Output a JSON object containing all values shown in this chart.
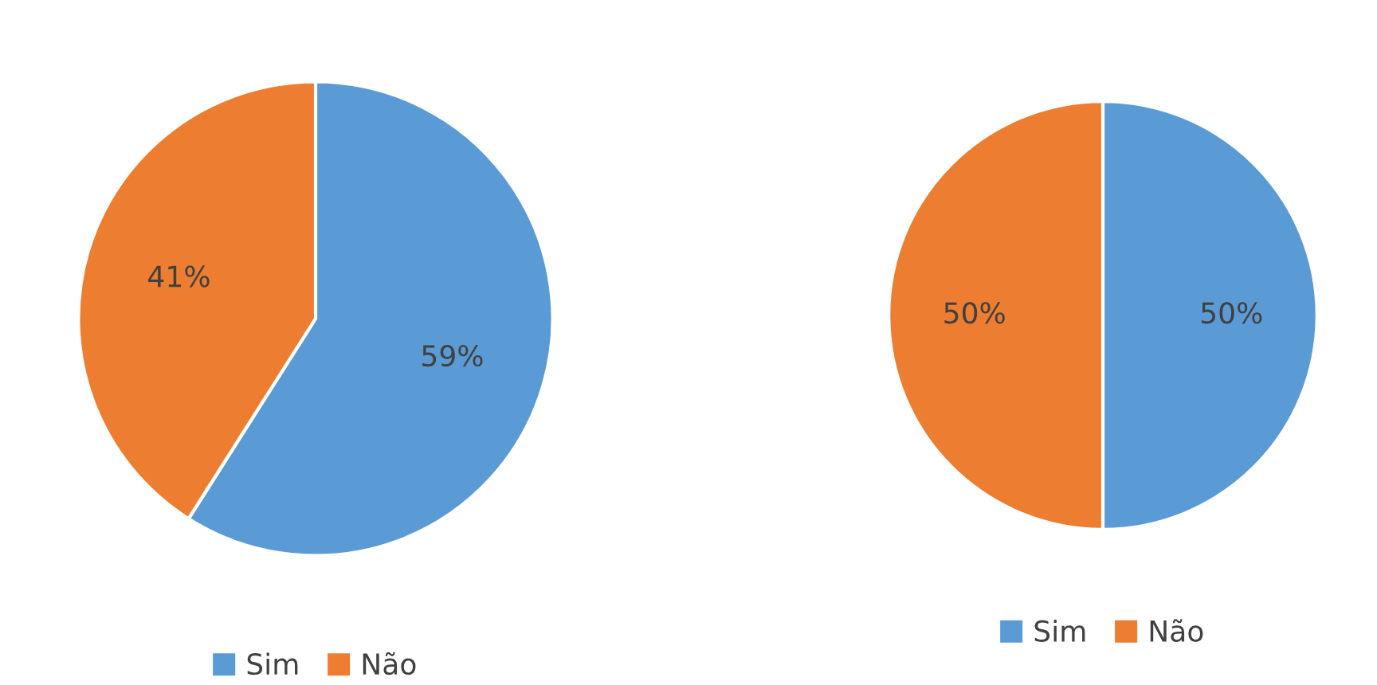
{
  "chart_data": [
    {
      "type": "pie",
      "categories": [
        "Sim",
        "Não"
      ],
      "values": [
        59,
        41
      ],
      "colors": [
        "#5b9bd5",
        "#ed7d31"
      ],
      "value_labels": [
        "59%",
        "41%"
      ],
      "legend": "bottom"
    },
    {
      "type": "pie",
      "categories": [
        "Sim",
        "Não"
      ],
      "values": [
        50,
        50
      ],
      "colors": [
        "#5b9bd5",
        "#ed7d31"
      ],
      "value_labels": [
        "50%",
        "50%"
      ],
      "legend": "bottom"
    }
  ]
}
